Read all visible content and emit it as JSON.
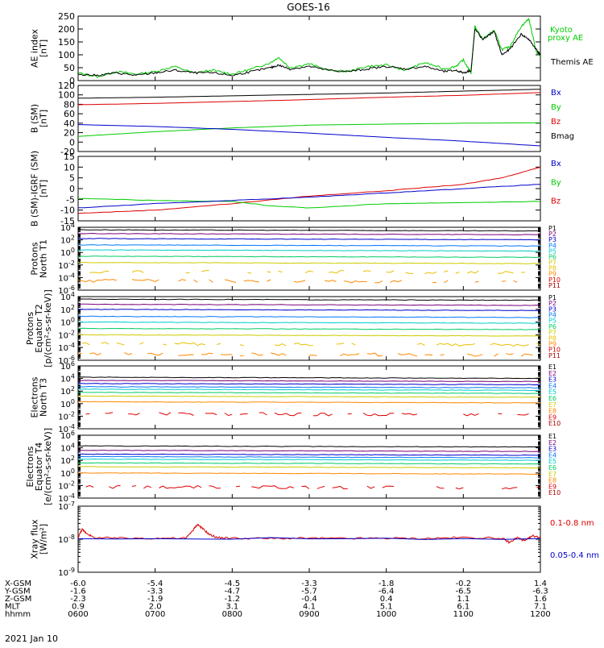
{
  "title": "GOES-16",
  "date_label": "2021 Jan 10",
  "chart_data": [
    {
      "type": "line",
      "panel": "ae",
      "ylabel": [
        "AE index",
        "[nT]"
      ],
      "ylim": [
        0,
        250
      ],
      "yticks": [
        0,
        50,
        100,
        150,
        200,
        250
      ],
      "legend": [
        "Kyoto",
        "proxy AE",
        "Themis AE"
      ],
      "series": [
        {
          "name": "Kyoto proxy AE",
          "color": "#00cc00",
          "x": [
            6.0,
            6.25,
            6.5,
            6.75,
            7.0,
            7.25,
            7.5,
            7.75,
            8.0,
            8.25,
            8.5,
            8.6,
            8.75,
            9.0,
            9.25,
            9.5,
            9.75,
            10.0,
            10.25,
            10.5,
            10.75,
            10.9,
            11.0,
            11.1,
            11.15,
            11.25,
            11.4,
            11.5,
            11.6,
            11.75,
            11.85,
            11.95,
            12.0
          ],
          "y": [
            30,
            15,
            35,
            25,
            35,
            55,
            30,
            40,
            25,
            45,
            70,
            90,
            50,
            65,
            40,
            35,
            55,
            60,
            40,
            70,
            45,
            55,
            80,
            30,
            210,
            160,
            195,
            120,
            130,
            210,
            240,
            110,
            95
          ]
        },
        {
          "name": "Themis AE",
          "color": "#000000",
          "x": [
            6.0,
            6.25,
            6.5,
            6.75,
            7.0,
            7.25,
            7.5,
            7.75,
            8.0,
            8.25,
            8.5,
            8.6,
            8.75,
            9.0,
            9.25,
            9.5,
            9.75,
            10.0,
            10.25,
            10.5,
            10.75,
            10.9,
            11.0,
            11.1,
            11.15,
            11.25,
            11.4,
            11.5,
            11.6,
            11.75,
            11.85,
            11.95,
            12.0
          ],
          "y": [
            25,
            20,
            30,
            20,
            30,
            40,
            30,
            30,
            20,
            35,
            50,
            60,
            45,
            55,
            40,
            35,
            45,
            55,
            45,
            55,
            35,
            40,
            30,
            40,
            200,
            160,
            190,
            100,
            120,
            180,
            160,
            120,
            100
          ]
        }
      ]
    },
    {
      "type": "line",
      "panel": "b_sm",
      "ylabel": [
        "B (SM)",
        "[nT]"
      ],
      "ylim": [
        -20,
        120
      ],
      "yticks": [
        -20,
        0,
        20,
        40,
        60,
        80,
        100,
        120
      ],
      "legend": [
        "Bx",
        "By",
        "Bz",
        "Bmag"
      ],
      "series": [
        {
          "name": "Bmag",
          "color": "#000000",
          "x": [
            6,
            7,
            8,
            9,
            10,
            11,
            12
          ],
          "y": [
            93,
            95,
            98,
            101,
            104,
            108,
            112
          ]
        },
        {
          "name": "Bz",
          "color": "#dd0000",
          "x": [
            6,
            7,
            8,
            9,
            10,
            11,
            12
          ],
          "y": [
            79,
            82,
            86,
            90,
            95,
            99,
            105
          ]
        },
        {
          "name": "By",
          "color": "#00cc00",
          "x": [
            6,
            7,
            8,
            9,
            10,
            11,
            12
          ],
          "y": [
            12,
            22,
            30,
            36,
            38,
            40,
            41
          ]
        },
        {
          "name": "Bx",
          "color": "#0000cc",
          "x": [
            6,
            7,
            8,
            9,
            10,
            11,
            12
          ],
          "y": [
            37,
            33,
            27,
            19,
            10,
            2,
            -8
          ]
        }
      ]
    },
    {
      "type": "line",
      "panel": "b_minus_igrf",
      "ylabel": [
        "B (SM)-IGRF (SM)",
        "[nT]"
      ],
      "ylim": [
        -15,
        15
      ],
      "yticks": [
        -15,
        -10,
        -5,
        0,
        5,
        10,
        15
      ],
      "legend": [
        "Bx",
        "By",
        "Bz"
      ],
      "series": [
        {
          "name": "Bz",
          "color": "#dd0000",
          "x": [
            6,
            7,
            8,
            9,
            10,
            11,
            11.5,
            12
          ],
          "y": [
            -11.5,
            -10,
            -7,
            -3.5,
            -1,
            2,
            5,
            10
          ]
        },
        {
          "name": "By",
          "color": "#00cc00",
          "x": [
            6,
            7,
            8,
            8.5,
            9,
            10,
            11,
            12
          ],
          "y": [
            -4.5,
            -5.5,
            -6,
            -8,
            -9,
            -7,
            -6.5,
            -6
          ]
        },
        {
          "name": "Bx",
          "color": "#0000cc",
          "x": [
            6,
            7,
            8,
            9,
            10,
            11,
            12
          ],
          "y": [
            -9,
            -7,
            -5.5,
            -4,
            -2,
            0,
            2
          ]
        }
      ]
    },
    {
      "type": "line",
      "panel": "protons_t1",
      "ylabel": [
        "Protons",
        "North T1"
      ],
      "scale": "log",
      "ylim_exp": [
        -6,
        4
      ],
      "ytick_exps": [
        -6,
        -4,
        -2,
        0,
        2,
        4
      ],
      "legend": [
        "P1",
        "P2",
        "P3",
        "P4",
        "P5",
        "P6",
        "P7",
        "P8",
        "P9",
        "P10",
        "P11"
      ],
      "series": [
        {
          "name": "P1",
          "color": "#000000",
          "exp": 3.6
        },
        {
          "name": "P2",
          "color": "#7a007a",
          "exp": 3.0
        },
        {
          "name": "P3",
          "color": "#0000cc",
          "exp": 2.2
        },
        {
          "name": "P4",
          "color": "#0077ff",
          "exp": 1.2
        },
        {
          "name": "P5",
          "color": "#00cccc",
          "exp": 0.4
        },
        {
          "name": "P6",
          "color": "#00cc66",
          "exp": -0.6
        },
        {
          "name": "P7",
          "color": "#cccc00",
          "exp": -1.6
        },
        {
          "name": "P8",
          "color": "#e8c000",
          "exp": -3.0
        },
        {
          "name": "P9",
          "color": "#ff8800",
          "exp": -4.5
        },
        {
          "name": "P10",
          "color": "#dd0000",
          "exp": -6.5
        },
        {
          "name": "P11",
          "color": "#aa0000",
          "exp": -7
        }
      ]
    },
    {
      "type": "line",
      "panel": "protons_t2",
      "ylabel": [
        "Protons",
        "Equator T2",
        "[p/(cm²-s-sr-keV)]"
      ],
      "scale": "log",
      "ylim_exp": [
        -6,
        4
      ],
      "ytick_exps": [
        -6,
        -4,
        -2,
        0,
        2,
        4
      ],
      "legend": [
        "P1",
        "P2",
        "P3",
        "P4",
        "P5",
        "P6",
        "P7",
        "P8",
        "P9",
        "P10",
        "P11"
      ],
      "series": [
        {
          "name": "P1",
          "color": "#000000",
          "exp": 3.6
        },
        {
          "name": "P2",
          "color": "#7a007a",
          "exp": 2.8
        },
        {
          "name": "P3",
          "color": "#0000cc",
          "exp": 2.0
        },
        {
          "name": "P4",
          "color": "#0077ff",
          "exp": 0.9
        },
        {
          "name": "P5",
          "color": "#00cccc",
          "exp": 0.0
        },
        {
          "name": "P6",
          "color": "#00cc66",
          "exp": -1.0
        },
        {
          "name": "P7",
          "color": "#cccc00",
          "exp": -2.0
        },
        {
          "name": "P8",
          "color": "#e8c000",
          "exp": -3.4
        },
        {
          "name": "P9",
          "color": "#ff8800",
          "exp": -5.0
        },
        {
          "name": "P10",
          "color": "#dd0000",
          "exp": -7
        },
        {
          "name": "P11",
          "color": "#aa0000",
          "exp": -7
        }
      ]
    },
    {
      "type": "line",
      "panel": "electrons_t3",
      "ylabel": [
        "Electrons",
        "North T3"
      ],
      "scale": "log",
      "ylim_exp": [
        -4,
        6
      ],
      "ytick_exps": [
        -4,
        -2,
        0,
        2,
        4,
        6
      ],
      "legend": [
        "E1",
        "E2",
        "E3",
        "E4",
        "E5",
        "E6",
        "E7",
        "E8",
        "E9",
        "E10"
      ],
      "series": [
        {
          "name": "E1",
          "color": "#000000",
          "exp": 4.2
        },
        {
          "name": "E2",
          "color": "#7a007a",
          "exp": 3.7
        },
        {
          "name": "E3",
          "color": "#0000cc",
          "exp": 3.2
        },
        {
          "name": "E4",
          "color": "#0077ff",
          "exp": 2.7
        },
        {
          "name": "E5",
          "color": "#00cccc",
          "exp": 2.3
        },
        {
          "name": "E6",
          "color": "#00cc66",
          "exp": 1.8
        },
        {
          "name": "E7",
          "color": "#cccc00",
          "exp": 1.2
        },
        {
          "name": "E8",
          "color": "#ff8800",
          "exp": 0.3
        },
        {
          "name": "E9",
          "color": "#dd0000",
          "exp": -1.6
        },
        {
          "name": "E10",
          "color": "#aa0000",
          "exp": -5
        }
      ]
    },
    {
      "type": "line",
      "panel": "electrons_t4",
      "ylabel": [
        "Electrons",
        "Equator T4",
        "[e/(cm²-s-sr-keV)]"
      ],
      "scale": "log",
      "ylim_exp": [
        -4,
        6
      ],
      "ytick_exps": [
        -4,
        -2,
        0,
        2,
        4,
        6
      ],
      "legend": [
        "E1",
        "E2",
        "E3",
        "E4",
        "E5",
        "E6",
        "E7",
        "E8",
        "E9",
        "E10"
      ],
      "series": [
        {
          "name": "E1",
          "color": "#000000",
          "exp": 4.3
        },
        {
          "name": "E2",
          "color": "#7a007a",
          "exp": 3.6
        },
        {
          "name": "E3",
          "color": "#0000cc",
          "exp": 3.0
        },
        {
          "name": "E4",
          "color": "#0077ff",
          "exp": 2.6
        },
        {
          "name": "E5",
          "color": "#00cccc",
          "exp": 2.2
        },
        {
          "name": "E6",
          "color": "#00cc66",
          "exp": 1.6
        },
        {
          "name": "E7",
          "color": "#cccc00",
          "exp": 1.0
        },
        {
          "name": "E8",
          "color": "#ff8800",
          "exp": 0.0
        },
        {
          "name": "E9",
          "color": "#dd0000",
          "exp": -2.2
        },
        {
          "name": "E10",
          "color": "#aa0000",
          "exp": -5
        }
      ]
    },
    {
      "type": "line",
      "panel": "xray",
      "ylabel": [
        "Xray flux",
        "[W/m²]"
      ],
      "scale": "log",
      "ylim_exp": [
        -9,
        -7
      ],
      "ytick_exps": [
        -9,
        -8,
        -7
      ],
      "legend": [
        "0.1-0.8 nm",
        "0.05-0.4 nm"
      ],
      "series": [
        {
          "name": "0.1-0.8 nm",
          "color": "#dd0000",
          "x": [
            6.0,
            6.05,
            6.1,
            6.2,
            6.5,
            7.0,
            7.4,
            7.5,
            7.55,
            7.6,
            7.7,
            7.8,
            8.0,
            8.5,
            9.0,
            9.5,
            10.0,
            10.5,
            11.0,
            11.5,
            11.6,
            11.7,
            11.8,
            11.9,
            12.0
          ],
          "y_exp": [
            -7.95,
            -7.7,
            -7.8,
            -7.95,
            -7.97,
            -7.97,
            -7.97,
            -7.7,
            -7.55,
            -7.65,
            -7.85,
            -7.95,
            -7.97,
            -7.98,
            -7.97,
            -7.98,
            -7.97,
            -7.98,
            -7.95,
            -7.97,
            -8.1,
            -7.95,
            -8.05,
            -7.9,
            -7.95
          ]
        },
        {
          "name": "0.05-0.4 nm",
          "color": "#0000cc",
          "x": [
            6.0,
            12.0
          ],
          "y_exp": [
            -7.98,
            -7.98
          ]
        }
      ]
    }
  ],
  "x_axis": {
    "tick_hours": [
      6,
      7,
      8,
      9,
      10,
      11,
      12
    ],
    "rows": [
      {
        "label": "X-GSM",
        "values": [
          "-6.0",
          "-5.4",
          "-4.5",
          "-3.3",
          "-1.8",
          "-0.2",
          "1.4"
        ]
      },
      {
        "label": "Y-GSM",
        "values": [
          "-1.6",
          "-3.3",
          "-4.7",
          "-5.7",
          "-6.4",
          "-6.5",
          "-6.3"
        ]
      },
      {
        "label": "Z-GSM",
        "values": [
          "-2.3",
          "-1.9",
          "-1.2",
          "-0.4",
          "0.4",
          "1.1",
          "1.6"
        ]
      },
      {
        "label": "MLT",
        "values": [
          "0.9",
          "2.0",
          "3.1",
          "4.1",
          "5.1",
          "6.1",
          "7.1"
        ]
      },
      {
        "label": "hhmm",
        "values": [
          "0600",
          "0700",
          "0800",
          "0900",
          "1000",
          "1100",
          "1200"
        ]
      }
    ]
  }
}
